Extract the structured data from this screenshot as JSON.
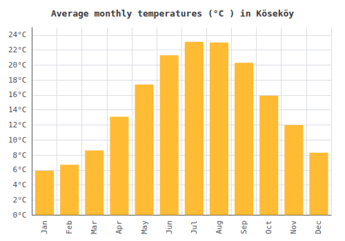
{
  "chart_data": {
    "type": "bar",
    "title": "Average monthly temperatures (°C ) in Köseköy",
    "categories": [
      "Jan",
      "Feb",
      "Mar",
      "Apr",
      "May",
      "Jun",
      "Jul",
      "Aug",
      "Sep",
      "Oct",
      "Nov",
      "Dec"
    ],
    "values": [
      5.9,
      6.7,
      8.6,
      13.1,
      17.4,
      21.3,
      23.1,
      23.0,
      20.3,
      15.9,
      12.0,
      8.3
    ],
    "color": "#FFBB33",
    "ylim": [
      0,
      25
    ],
    "yticks": [
      {
        "value": 0,
        "label": "0°C"
      },
      {
        "value": 2,
        "label": "2°C"
      },
      {
        "value": 4,
        "label": "4°C"
      },
      {
        "value": 6,
        "label": "6°C"
      },
      {
        "value": 8,
        "label": "8°C"
      },
      {
        "value": 10,
        "label": "10°C"
      },
      {
        "value": 12,
        "label": "12°C"
      },
      {
        "value": 14,
        "label": "14°C"
      },
      {
        "value": 16,
        "label": "16°C"
      },
      {
        "value": 18,
        "label": "18°C"
      },
      {
        "value": 20,
        "label": "20°C"
      },
      {
        "value": 22,
        "label": "22°C"
      },
      {
        "value": 24,
        "label": "24°C"
      }
    ],
    "grid": true
  }
}
